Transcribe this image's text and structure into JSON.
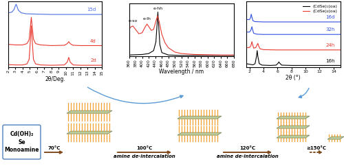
{
  "chart_data": [
    {
      "type": "line",
      "x_label": "2θ/Deg.",
      "xlim": [
        2,
        15
      ],
      "xticks": [
        2,
        3,
        4,
        5,
        6,
        7,
        8,
        9,
        10,
        11,
        12,
        13,
        14,
        15
      ],
      "ylim": [
        0,
        10
      ],
      "yticks": [],
      "tick_labels": "x",
      "series": [
        {
          "name": "2d",
          "color": "#e8382f",
          "x": [
            2,
            3,
            4,
            4.6,
            4.9,
            5.1,
            5.2,
            5.3,
            5.5,
            5.8,
            6.5,
            8,
            9.8,
            10.2,
            10.4,
            10.6,
            11,
            12,
            13,
            14,
            15
          ],
          "values": [
            0.4,
            0.35,
            0.35,
            0.5,
            1.2,
            4.5,
            6.3,
            4.5,
            1.2,
            0.5,
            0.35,
            0.3,
            0.35,
            0.8,
            1.5,
            0.8,
            0.35,
            0.3,
            0.3,
            0.3,
            0.3
          ]
        },
        {
          "name": "4d",
          "color": "#e8382f",
          "x": [
            2,
            3,
            4,
            4.6,
            4.9,
            5.1,
            5.2,
            5.3,
            5.5,
            5.8,
            6.5,
            8,
            9.8,
            10.2,
            10.4,
            10.6,
            11,
            12,
            13,
            14,
            15
          ],
          "values": [
            3.5,
            3.4,
            3.4,
            3.6,
            4.2,
            6.5,
            7.6,
            6.5,
            4.3,
            3.6,
            3.4,
            3.3,
            3.35,
            3.6,
            3.9,
            3.6,
            3.35,
            3.3,
            3.3,
            3.3,
            3.3
          ]
        },
        {
          "name": "15d",
          "color": "#4a6fe3",
          "x": [
            2,
            2.5,
            2.8,
            3.0,
            3.1,
            3.2,
            3.4,
            3.8,
            4.5,
            6,
            8,
            10,
            12,
            15
          ],
          "values": [
            8.3,
            8.4,
            8.8,
            9.4,
            9.6,
            9.3,
            8.7,
            8.3,
            8.15,
            8.1,
            8.05,
            8.05,
            8.05,
            8.05
          ]
        }
      ]
    },
    {
      "type": "line",
      "x_label": "Wavelength / nm",
      "xlim": [
        360,
        680
      ],
      "xticks": [
        360,
        380,
        400,
        420,
        440,
        460,
        480,
        500,
        520,
        540,
        560,
        580,
        600,
        620,
        640,
        660,
        680
      ],
      "ylim": [
        0,
        11
      ],
      "yticks": [],
      "tick_labels": "x",
      "series": [
        {
          "color": "#000000",
          "x": [
            360,
            400,
            420,
            435,
            442,
            446,
            448,
            450,
            454,
            460,
            480,
            520,
            600,
            680
          ],
          "values": [
            0.3,
            0.4,
            0.6,
            1.2,
            3,
            7,
            9.2,
            7,
            2.5,
            0.8,
            0.3,
            0.2,
            0.2,
            0.2
          ]
        },
        {
          "color": "#e8382f",
          "x": [
            360,
            365,
            372,
            380,
            390,
            400,
            410,
            415,
            420,
            428,
            435,
            442,
            447,
            452,
            460,
            470,
            480,
            500,
            520,
            560,
            600,
            640,
            680
          ],
          "values": [
            5.6,
            6.1,
            6.3,
            5.6,
            4.7,
            4.9,
            6.2,
            6.7,
            6.2,
            5.4,
            5.6,
            7.3,
            8.4,
            7.2,
            4.6,
            2.8,
            1.8,
            0.9,
            0.6,
            0.4,
            0.35,
            0.3,
            0.3
          ]
        }
      ],
      "annotations": [
        {
          "text": "e-so",
          "x": 372,
          "y": 7.0
        },
        {
          "text": "e-lh",
          "x": 415,
          "y": 7.4
        },
        {
          "text": "e-hh",
          "x": 448,
          "y": 9.6
        }
      ]
    },
    {
      "type": "line",
      "x_label": "2θ (°)",
      "xlim": [
        1.5,
        15
      ],
      "xticks": [
        2,
        4,
        6,
        8,
        10,
        12,
        14
      ],
      "ylim": [
        0,
        11
      ],
      "yticks": [],
      "tick_labels": "x",
      "legend": "upper right",
      "legend_entries": [
        {
          "name": "(CdSe)₁(oa)",
          "color": "#000000"
        },
        {
          "name": "(CdSe)₂(oa)",
          "color": "#e8382f"
        }
      ],
      "series": [
        {
          "name": "16h",
          "color": "#000000",
          "x": [
            1.5,
            2,
            2.5,
            2.8,
            3.0,
            3.1,
            3.2,
            3.4,
            3.8,
            5,
            5.8,
            6.1,
            6.2,
            6.3,
            6.6,
            8,
            10,
            12,
            15
          ],
          "values": [
            0.6,
            0.5,
            0.4,
            0.6,
            1.8,
            2.8,
            1.8,
            0.6,
            0.35,
            0.3,
            0.35,
            0.7,
            0.9,
            0.7,
            0.35,
            0.3,
            0.3,
            0.3,
            0.3
          ]
        },
        {
          "name": "24h",
          "color": "#e8382f",
          "x": [
            1.5,
            2,
            2.2,
            2.35,
            2.45,
            2.6,
            2.9,
            3.1,
            3.2,
            3.3,
            3.5,
            4,
            6,
            8,
            10,
            12,
            15
          ],
          "values": [
            3.3,
            3.3,
            3.6,
            4.3,
            3.8,
            3.2,
            3.3,
            3.8,
            4.0,
            3.6,
            3.1,
            2.95,
            2.9,
            2.9,
            2.9,
            2.9,
            2.9
          ]
        },
        {
          "name": "32h",
          "color": "#3050e0",
          "x": [
            1.5,
            2,
            2.2,
            2.35,
            2.45,
            2.6,
            3,
            4,
            6,
            8,
            10,
            12,
            15
          ],
          "values": [
            5.9,
            5.9,
            6.2,
            6.8,
            6.3,
            5.7,
            5.55,
            5.5,
            5.5,
            5.5,
            5.5,
            5.5,
            5.5
          ]
        },
        {
          "name": "16d",
          "color": "#3050e0",
          "x": [
            1.5,
            2,
            2.15,
            2.25,
            2.35,
            2.5,
            2.8,
            4,
            6,
            8,
            10,
            12,
            15
          ],
          "values": [
            8.0,
            8.0,
            8.3,
            8.9,
            8.4,
            7.8,
            7.65,
            7.6,
            7.6,
            7.6,
            7.6,
            7.6,
            7.6
          ]
        }
      ]
    }
  ],
  "diagram": {
    "start_box": [
      "Cd(OH)₂",
      "Se",
      "Monoamine"
    ],
    "steps": [
      {
        "temperature": "70°C"
      },
      {
        "temperature": "100°C",
        "process": "amine de-intercalation"
      },
      {
        "temperature": "120°C",
        "process": "amine de-intercalation"
      },
      {
        "temperature": "≥150°C"
      }
    ]
  }
}
